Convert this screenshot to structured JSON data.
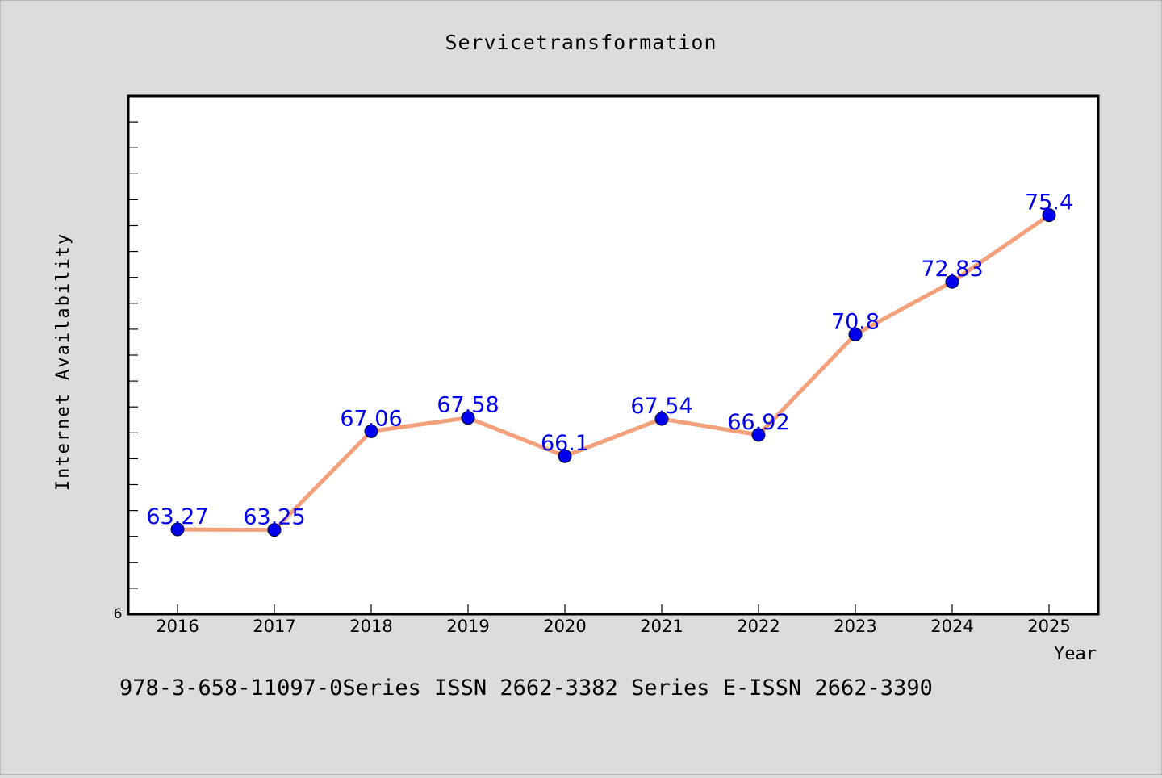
{
  "chart_data": {
    "type": "line",
    "title": "Servicetransformation",
    "xlabel": "Year",
    "ylabel": "Internet Availability",
    "categories": [
      "2016",
      "2017",
      "2018",
      "2019",
      "2020",
      "2021",
      "2022",
      "2023",
      "2024",
      "2025"
    ],
    "series": [
      {
        "values": [
          63.27,
          63.25,
          67.06,
          67.58,
          66.1,
          67.54,
          66.92,
          70.8,
          72.83,
          75.4
        ],
        "line_color": "#f4a07a",
        "marker_color": "#0000ee",
        "label_color": "#0000ee"
      }
    ],
    "ylim": [
      60,
      80
    ],
    "y_tick_label": "6",
    "grid": false,
    "legend": "none"
  },
  "footer": {
    "text": "978-3-658-11097-0Series ISSN 2662-3382 Series E-ISSN 2662-3390"
  },
  "colors": {
    "background": "#dcdcdc",
    "plot_background": "#ffffff",
    "axis": "#000000"
  }
}
